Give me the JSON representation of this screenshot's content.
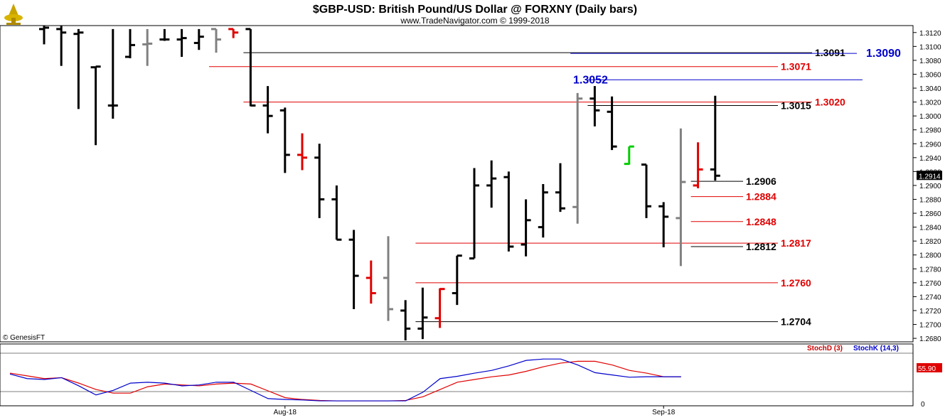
{
  "header": {
    "title": "$GBP-USD:  British Pound/US Dollar @ FORXNY  (Daily bars)",
    "subtitle": "www.TradeNavigator.com © 1999-2018"
  },
  "footer": {
    "credit": "© GenesisFT"
  },
  "colors": {
    "up_bar": "#000000",
    "down_bar": "#e00000",
    "neutral_bar": "#808080",
    "highlight_bar": "#00cc00",
    "level_red": "#e00000",
    "level_black": "#000000",
    "level_blue": "#0000cc",
    "stoch_d": "#cc0000",
    "stoch_k": "#0000cc"
  },
  "chart_data": [
    {
      "type": "ohlc",
      "title": "$GBP-USD:  British Pound/US Dollar @ FORXNY  (Daily bars)",
      "y_ticks": [
        "1.3120",
        "1.3100",
        "1.3080",
        "1.3060",
        "1.3040",
        "1.3020",
        "1.3000",
        "1.2980",
        "1.2960",
        "1.2940",
        "1.2920",
        "1.2900",
        "1.2880",
        "1.2860",
        "1.2840",
        "1.2820",
        "1.2800",
        "1.2780",
        "1.2760",
        "1.2740",
        "1.2720",
        "1.2700",
        "1.2680"
      ],
      "ylim": [
        1.2675,
        1.313
      ],
      "x_labels": [
        {
          "label": "Aug-18",
          "bar": 14
        },
        {
          "label": "Sep-18",
          "bar": 36
        }
      ],
      "last_price": "1.2914",
      "bars": [
        {
          "o": 1.3125,
          "h": 1.313,
          "l": 1.3103,
          "c": 1.3127,
          "color": "black"
        },
        {
          "o": 1.3125,
          "h": 1.313,
          "l": 1.3072,
          "c": 1.312,
          "color": "black"
        },
        {
          "o": 1.3118,
          "h": 1.3125,
          "l": 1.301,
          "c": 1.312,
          "color": "black"
        },
        {
          "o": 1.307,
          "h": 1.307,
          "l": 1.2958,
          "c": 1.3071,
          "color": "black"
        },
        {
          "o": 1.3015,
          "h": 1.3125,
          "l": 1.2996,
          "c": 1.3015,
          "color": "black"
        },
        {
          "o": 1.3085,
          "h": 1.3125,
          "l": 1.3083,
          "c": 1.3102,
          "color": "black"
        },
        {
          "o": 1.3103,
          "h": 1.3125,
          "l": 1.3072,
          "c": 1.3104,
          "color": "gray"
        },
        {
          "o": 1.311,
          "h": 1.3125,
          "l": 1.3108,
          "c": 1.311,
          "color": "black"
        },
        {
          "o": 1.311,
          "h": 1.3125,
          "l": 1.3085,
          "c": 1.3112,
          "color": "black"
        },
        {
          "o": 1.3105,
          "h": 1.3125,
          "l": 1.3095,
          "c": 1.3114,
          "color": "black"
        },
        {
          "o": 1.3125,
          "h": 1.3125,
          "l": 1.3091,
          "c": 1.311,
          "color": "gray"
        },
        {
          "o": 1.3125,
          "h": 1.3125,
          "l": 1.3112,
          "c": 1.312,
          "color": "red"
        },
        {
          "o": 1.3125,
          "h": 1.3125,
          "l": 1.3014,
          "c": 1.3015,
          "color": "black"
        },
        {
          "o": 1.3015,
          "h": 1.3043,
          "l": 1.2975,
          "c": 1.3,
          "color": "black"
        },
        {
          "o": 1.3008,
          "h": 1.3012,
          "l": 1.2918,
          "c": 1.2944,
          "color": "black"
        },
        {
          "o": 1.2944,
          "h": 1.2975,
          "l": 1.2922,
          "c": 1.294,
          "color": "red"
        },
        {
          "o": 1.294,
          "h": 1.296,
          "l": 1.2853,
          "c": 1.288,
          "color": "black"
        },
        {
          "o": 1.288,
          "h": 1.29,
          "l": 1.2822,
          "c": 1.2822,
          "color": "black"
        },
        {
          "o": 1.2822,
          "h": 1.2836,
          "l": 1.2722,
          "c": 1.277,
          "color": "black"
        },
        {
          "o": 1.2767,
          "h": 1.2792,
          "l": 1.273,
          "c": 1.2745,
          "color": "red"
        },
        {
          "o": 1.2767,
          "h": 1.2827,
          "l": 1.2705,
          "c": 1.2722,
          "color": "gray"
        },
        {
          "o": 1.272,
          "h": 1.2735,
          "l": 1.2677,
          "c": 1.2694,
          "color": "black"
        },
        {
          "o": 1.2694,
          "h": 1.2753,
          "l": 1.2679,
          "c": 1.271,
          "color": "black"
        },
        {
          "o": 1.2709,
          "h": 1.2752,
          "l": 1.2695,
          "c": 1.2751,
          "color": "red"
        },
        {
          "o": 1.2745,
          "h": 1.2799,
          "l": 1.2728,
          "c": 1.2799,
          "color": "black"
        },
        {
          "o": 1.2795,
          "h": 1.2925,
          "l": 1.2795,
          "c": 1.29,
          "color": "black"
        },
        {
          "o": 1.29,
          "h": 1.2936,
          "l": 1.2868,
          "c": 1.291,
          "color": "black"
        },
        {
          "o": 1.2912,
          "h": 1.292,
          "l": 1.2805,
          "c": 1.2812,
          "color": "black"
        },
        {
          "o": 1.2815,
          "h": 1.288,
          "l": 1.2798,
          "c": 1.285,
          "color": "black"
        },
        {
          "o": 1.284,
          "h": 1.2902,
          "l": 1.2825,
          "c": 1.289,
          "color": "black"
        },
        {
          "o": 1.289,
          "h": 1.2932,
          "l": 1.2862,
          "c": 1.2867,
          "color": "black"
        },
        {
          "o": 1.2869,
          "h": 1.3033,
          "l": 1.2845,
          "c": 1.3025,
          "color": "gray"
        },
        {
          "o": 1.3025,
          "h": 1.3043,
          "l": 1.2985,
          "c": 1.3008,
          "color": "black"
        },
        {
          "o": 1.3006,
          "h": 1.3028,
          "l": 1.2951,
          "c": 1.2956,
          "color": "black"
        },
        {
          "o": 1.2931,
          "h": 1.2956,
          "l": 1.293,
          "c": 1.2956,
          "color": "green"
        },
        {
          "o": 1.293,
          "h": 1.293,
          "l": 1.2853,
          "c": 1.287,
          "color": "black"
        },
        {
          "o": 1.287,
          "h": 1.2876,
          "l": 1.2811,
          "c": 1.2855,
          "color": "black"
        },
        {
          "o": 1.2853,
          "h": 1.2982,
          "l": 1.2784,
          "c": 1.2905,
          "color": "gray"
        },
        {
          "o": 1.29,
          "h": 1.2962,
          "l": 1.2896,
          "c": 1.2923,
          "color": "red"
        },
        {
          "o": 1.2923,
          "h": 1.3029,
          "l": 1.2907,
          "c": 1.2914,
          "color": "black"
        }
      ],
      "levels": [
        {
          "value": 1.3091,
          "label": "1.3091",
          "color": "black",
          "from_bar": 12
        },
        {
          "value": 1.309,
          "label": "1.3090",
          "color": "blue",
          "from_bar": 31
        },
        {
          "value": 1.3071,
          "label": "1.3071",
          "color": "red",
          "from_bar": 10
        },
        {
          "value": 1.3052,
          "label": "1.3052",
          "color": "blue",
          "from_bar": 32
        },
        {
          "value": 1.302,
          "label": "1.3020",
          "color": "red",
          "from_bar": 12
        },
        {
          "value": 1.3015,
          "label": "1.3015",
          "color": "black",
          "from_bar": 32
        },
        {
          "value": 1.2906,
          "label": "1.2906",
          "color": "black",
          "from_bar": 38
        },
        {
          "value": 1.2884,
          "label": "1.2884",
          "color": "red",
          "from_bar": 38
        },
        {
          "value": 1.2848,
          "label": "1.2848",
          "color": "red",
          "from_bar": 38
        },
        {
          "value": 1.2817,
          "label": "1.2817",
          "color": "red",
          "from_bar": 22
        },
        {
          "value": 1.2812,
          "label": "1.2812",
          "color": "black",
          "from_bar": 38
        },
        {
          "value": 1.276,
          "label": "1.2760",
          "color": "red",
          "from_bar": 22
        },
        {
          "value": 1.2704,
          "label": "1.2704",
          "color": "black",
          "from_bar": 22
        }
      ]
    },
    {
      "type": "line",
      "legend": [
        "StochD (3)",
        "StochK (14,3)"
      ],
      "y_ticks": [
        "0"
      ],
      "ylim": [
        0,
        100
      ],
      "last_value": "55.90",
      "series": [
        {
          "name": "StochD (3)",
          "color": "red",
          "values": [
            64,
            58,
            52,
            54,
            42,
            28,
            20,
            20,
            34,
            40,
            38,
            36,
            40,
            42,
            40,
            25,
            10,
            6,
            4,
            3,
            3,
            3,
            3,
            4,
            12,
            28,
            44,
            50,
            56,
            60,
            68,
            78,
            86,
            90,
            90,
            82,
            70,
            64,
            56,
            56
          ]
        },
        {
          "name": "StochK (14,3)",
          "color": "blue",
          "values": [
            62,
            52,
            50,
            54,
            36,
            16,
            26,
            42,
            44,
            42,
            36,
            38,
            44,
            44,
            26,
            8,
            6,
            5,
            3,
            3,
            3,
            3,
            3,
            3,
            22,
            52,
            57,
            64,
            70,
            80,
            92,
            95,
            95,
            82,
            65,
            60,
            55,
            56,
            56,
            56
          ]
        }
      ]
    }
  ]
}
